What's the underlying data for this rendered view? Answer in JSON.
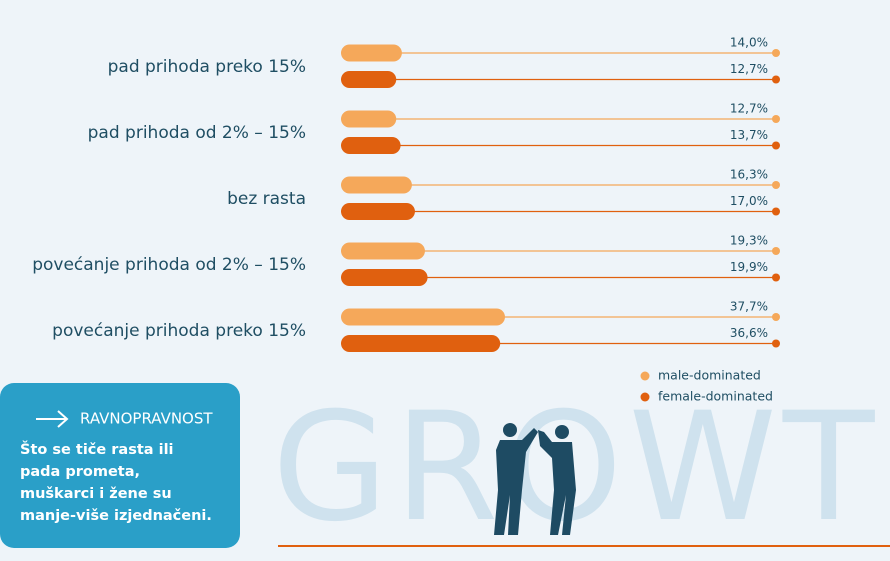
{
  "chart_data": {
    "type": "bar",
    "categories": [
      "pad prihoda preko 15%",
      "pad prihoda od 2% – 15%",
      "bez rasta",
      "povećanje prihoda od 2% – 15%",
      "povećanje prihoda preko 15%"
    ],
    "series": [
      {
        "name": "male-dominated",
        "color": "#f5a85a",
        "values": [
          14.0,
          12.7,
          16.3,
          19.3,
          37.7
        ],
        "value_labels": [
          "14,0%",
          "12,7%",
          "16,3%",
          "19,3%",
          "37,7%"
        ]
      },
      {
        "name": "female-dominated",
        "color": "#e0600f",
        "values": [
          12.7,
          13.7,
          17.0,
          19.9,
          36.6
        ],
        "value_labels": [
          "12,7%",
          "13,7%",
          "17,0%",
          "19,9%",
          "36,6%"
        ]
      }
    ],
    "xlim": [
      0,
      100
    ]
  },
  "callout": {
    "title": "RAVNOPRAVNOST",
    "lines": [
      "Što se tiče rasta ili",
      "pada prometa,",
      "muškarci i žene su",
      "manje-više izjednačeni."
    ]
  },
  "background_text": "GROWTH"
}
